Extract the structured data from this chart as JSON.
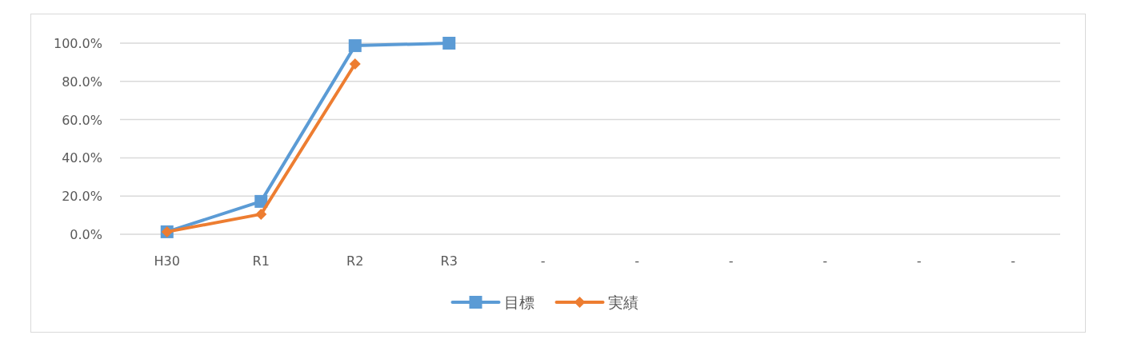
{
  "chart_data": {
    "type": "line",
    "categories": [
      "H30",
      "R1",
      "R2",
      "R3",
      "-",
      "-",
      "-",
      "-",
      "-",
      "-"
    ],
    "series": [
      {
        "name": "目標",
        "color": "#5b9bd5",
        "marker": "square",
        "values": [
          1.3,
          17.2,
          98.7,
          100,
          null,
          null,
          null,
          null,
          null,
          null
        ]
      },
      {
        "name": "実績",
        "color": "#ed7d31",
        "marker": "diamond",
        "values": [
          1.3,
          10.5,
          89.1,
          null,
          null,
          null,
          null,
          null,
          null,
          null
        ]
      }
    ],
    "ylim": [
      0,
      100
    ],
    "yticks": [
      {
        "value": 0,
        "label": "0.0%"
      },
      {
        "value": 20,
        "label": "20.0%"
      },
      {
        "value": 40,
        "label": "40.0%"
      },
      {
        "value": 60,
        "label": "60.0%"
      },
      {
        "value": 80,
        "label": "80.0%"
      },
      {
        "value": 100,
        "label": "100.0%"
      }
    ],
    "grid": "y",
    "legend": "bottom",
    "line_style": "solid"
  }
}
